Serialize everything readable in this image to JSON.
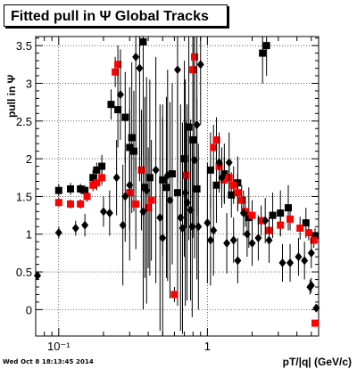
{
  "title": "Fitted pull in Ψ   Global Tracks",
  "footer": "Wed Oct  8 18:13:45 2014",
  "chart_data": {
    "type": "scatter",
    "title": "Fitted pull in Ψ   Global Tracks",
    "xlabel": "pT/|q| (GeV/c)",
    "ylabel": "pull in Ψ",
    "x_scale": "log",
    "xlim": [
      0.07,
      5.6
    ],
    "ylim": [
      -0.35,
      3.62
    ],
    "grid": true,
    "x_ticks": [
      {
        "value": 0.1,
        "label": "10⁻¹"
      },
      {
        "value": 1,
        "label": "1"
      }
    ],
    "y_ticks": [
      0,
      0.5,
      1,
      1.5,
      2,
      2.5,
      3,
      3.5
    ],
    "series": [
      {
        "marker": "square",
        "color": "#000000",
        "points": [
          {
            "x": 0.1,
            "y": 1.58,
            "err": 0.08
          },
          {
            "x": 0.12,
            "y": 1.6,
            "err": 0.08
          },
          {
            "x": 0.14,
            "y": 1.6,
            "err": 0.07
          },
          {
            "x": 0.15,
            "y": 1.58,
            "err": 0.07
          },
          {
            "x": 0.17,
            "y": 1.75,
            "err": 0.1
          },
          {
            "x": 0.18,
            "y": 1.85,
            "err": 0.1
          },
          {
            "x": 0.195,
            "y": 1.9,
            "err": 0.15
          },
          {
            "x": 0.225,
            "y": 2.72,
            "err": 0.2
          },
          {
            "x": 0.25,
            "y": 2.65,
            "err": 0.5
          },
          {
            "x": 0.28,
            "y": 2.55,
            "err": 0.6
          },
          {
            "x": 0.3,
            "y": 2.15,
            "err": 0.8
          },
          {
            "x": 0.31,
            "y": 2.28,
            "err": 1.0
          },
          {
            "x": 0.32,
            "y": 2.1,
            "err": 0.8
          },
          {
            "x": 0.37,
            "y": 3.55,
            "err": 1.5
          },
          {
            "x": 0.38,
            "y": 1.62,
            "err": 1.2
          },
          {
            "x": 0.41,
            "y": 1.75,
            "err": 1.3
          },
          {
            "x": 0.5,
            "y": 1.72,
            "err": 1.0
          },
          {
            "x": 0.53,
            "y": 1.62,
            "err": 1.2
          },
          {
            "x": 0.58,
            "y": 1.8,
            "err": 1.2
          },
          {
            "x": 0.63,
            "y": 1.55,
            "err": 1.5
          },
          {
            "x": 0.7,
            "y": 2.0,
            "err": 1.3
          },
          {
            "x": 0.75,
            "y": 2.42,
            "err": 1.5
          },
          {
            "x": 0.8,
            "y": 2.25,
            "err": 1.3
          },
          {
            "x": 0.85,
            "y": 1.6,
            "err": 1.2
          },
          {
            "x": 1.05,
            "y": 1.85,
            "err": 0.5
          },
          {
            "x": 1.15,
            "y": 1.65,
            "err": 0.5
          },
          {
            "x": 1.3,
            "y": 1.8,
            "err": 0.4
          },
          {
            "x": 1.45,
            "y": 1.52,
            "err": 0.3
          },
          {
            "x": 1.6,
            "y": 1.68,
            "err": 0.35
          },
          {
            "x": 1.9,
            "y": 1.22,
            "err": 0.4
          },
          {
            "x": 2.35,
            "y": 3.4,
            "err": 0.4
          },
          {
            "x": 2.5,
            "y": 3.5,
            "err": 0.4
          },
          {
            "x": 2.75,
            "y": 1.25,
            "err": 0.3
          },
          {
            "x": 3.1,
            "y": 1.28,
            "err": 0.3
          },
          {
            "x": 3.5,
            "y": 1.35,
            "err": 0.3
          },
          {
            "x": 4.6,
            "y": 1.15,
            "err": 0.2
          },
          {
            "x": 5.3,
            "y": 0.98,
            "err": 0.1
          }
        ]
      },
      {
        "marker": "square",
        "color": "#ff0000",
        "points": [
          {
            "x": 0.1,
            "y": 1.42,
            "err": 0.06
          },
          {
            "x": 0.12,
            "y": 1.4,
            "err": 0.06
          },
          {
            "x": 0.14,
            "y": 1.4,
            "err": 0.06
          },
          {
            "x": 0.155,
            "y": 1.5,
            "err": 0.07
          },
          {
            "x": 0.17,
            "y": 1.65,
            "err": 0.08
          },
          {
            "x": 0.18,
            "y": 1.68,
            "err": 0.1
          },
          {
            "x": 0.195,
            "y": 1.75,
            "err": 0.1
          },
          {
            "x": 0.24,
            "y": 3.15,
            "err": 0.2
          },
          {
            "x": 0.25,
            "y": 3.25,
            "err": 0.25
          },
          {
            "x": 0.3,
            "y": 1.55,
            "err": 0.5
          },
          {
            "x": 0.33,
            "y": 1.4,
            "err": 0.6
          },
          {
            "x": 0.36,
            "y": 1.85,
            "err": 0.8
          },
          {
            "x": 0.4,
            "y": 1.35,
            "err": 0.8
          },
          {
            "x": 0.42,
            "y": 1.45,
            "err": 0.8
          },
          {
            "x": 0.6,
            "y": 0.2,
            "err": 0.1
          },
          {
            "x": 0.72,
            "y": 1.78,
            "err": 0.7
          },
          {
            "x": 0.8,
            "y": 3.18,
            "err": 0.7
          },
          {
            "x": 0.82,
            "y": 3.35,
            "err": 0.6
          },
          {
            "x": 1.1,
            "y": 2.15,
            "err": 0.3
          },
          {
            "x": 1.15,
            "y": 2.25,
            "err": 0.3
          },
          {
            "x": 1.2,
            "y": 1.9,
            "err": 0.3
          },
          {
            "x": 1.3,
            "y": 1.72,
            "err": 0.3
          },
          {
            "x": 1.4,
            "y": 1.75,
            "err": 0.25
          },
          {
            "x": 1.5,
            "y": 1.65,
            "err": 0.25
          },
          {
            "x": 1.6,
            "y": 1.55,
            "err": 0.25
          },
          {
            "x": 1.7,
            "y": 1.45,
            "err": 0.2
          },
          {
            "x": 1.8,
            "y": 1.3,
            "err": 0.2
          },
          {
            "x": 2.0,
            "y": 1.25,
            "err": 0.2
          },
          {
            "x": 2.3,
            "y": 1.18,
            "err": 0.2
          },
          {
            "x": 2.6,
            "y": 1.05,
            "err": 0.15
          },
          {
            "x": 3.1,
            "y": 1.12,
            "err": 0.15
          },
          {
            "x": 3.6,
            "y": 1.2,
            "err": 0.15
          },
          {
            "x": 4.2,
            "y": 1.08,
            "err": 0.15
          },
          {
            "x": 4.8,
            "y": 1.02,
            "err": 0.1
          },
          {
            "x": 5.2,
            "y": 0.92,
            "err": 0.1
          },
          {
            "x": 5.3,
            "y": -0.18,
            "err": 0.03
          }
        ]
      },
      {
        "marker": "diamond",
        "color": "#000000",
        "points": [
          {
            "x": 0.072,
            "y": 0.45,
            "err": 0.03
          },
          {
            "x": 0.1,
            "y": 1.02,
            "err": 0.08
          },
          {
            "x": 0.13,
            "y": 1.08,
            "err": 0.1
          },
          {
            "x": 0.15,
            "y": 1.12,
            "err": 0.15
          },
          {
            "x": 0.2,
            "y": 1.3,
            "err": 0.2
          },
          {
            "x": 0.22,
            "y": 1.28,
            "err": 0.3
          },
          {
            "x": 0.245,
            "y": 1.75,
            "err": 0.5
          },
          {
            "x": 0.26,
            "y": 2.85,
            "err": 0.6
          },
          {
            "x": 0.27,
            "y": 1.12,
            "err": 0.8
          },
          {
            "x": 0.28,
            "y": 1.5,
            "err": 0.6
          },
          {
            "x": 0.3,
            "y": 1.65,
            "err": 1.0
          },
          {
            "x": 0.33,
            "y": 3.35,
            "err": 1.5
          },
          {
            "x": 0.35,
            "y": 3.2,
            "err": 1.5
          },
          {
            "x": 0.37,
            "y": 1.3,
            "err": 1.3
          },
          {
            "x": 0.39,
            "y": 1.58,
            "err": 1.5
          },
          {
            "x": 0.45,
            "y": 1.85,
            "err": 1.5
          },
          {
            "x": 0.48,
            "y": 1.22,
            "err": 1.5
          },
          {
            "x": 0.5,
            "y": 0.95,
            "err": 1.6
          },
          {
            "x": 0.54,
            "y": 1.78,
            "err": 1.4
          },
          {
            "x": 0.56,
            "y": 1.45,
            "err": 1.3
          },
          {
            "x": 0.63,
            "y": 3.18,
            "err": 1.5
          },
          {
            "x": 0.66,
            "y": 1.22,
            "err": 1.5
          },
          {
            "x": 0.68,
            "y": 1.08,
            "err": 1.4
          },
          {
            "x": 0.71,
            "y": 1.55,
            "err": 1.5
          },
          {
            "x": 0.73,
            "y": 1.42,
            "err": 1.3
          },
          {
            "x": 0.77,
            "y": 1.32,
            "err": 1.2
          },
          {
            "x": 0.79,
            "y": 1.1,
            "err": 1.2
          },
          {
            "x": 0.82,
            "y": 1.98,
            "err": 1.3
          },
          {
            "x": 0.85,
            "y": 2.45,
            "err": 1.2
          },
          {
            "x": 0.87,
            "y": 1.1,
            "err": 1.1
          },
          {
            "x": 0.9,
            "y": 3.25,
            "err": 0.8
          },
          {
            "x": 1.0,
            "y": 1.15,
            "err": 0.8
          },
          {
            "x": 1.05,
            "y": 0.92,
            "err": 0.6
          },
          {
            "x": 1.1,
            "y": 1.05,
            "err": 0.6
          },
          {
            "x": 1.2,
            "y": 1.95,
            "err": 0.4
          },
          {
            "x": 1.25,
            "y": 1.75,
            "err": 0.4
          },
          {
            "x": 1.35,
            "y": 0.88,
            "err": 0.4
          },
          {
            "x": 1.4,
            "y": 1.95,
            "err": 0.4
          },
          {
            "x": 1.5,
            "y": 0.92,
            "err": 0.3
          },
          {
            "x": 1.6,
            "y": 0.65,
            "err": 0.3
          },
          {
            "x": 1.75,
            "y": 1.28,
            "err": 0.3
          },
          {
            "x": 1.85,
            "y": 1.0,
            "err": 0.3
          },
          {
            "x": 2.0,
            "y": 0.88,
            "err": 0.3
          },
          {
            "x": 2.2,
            "y": 0.95,
            "err": 0.3
          },
          {
            "x": 2.45,
            "y": 1.18,
            "err": 0.3
          },
          {
            "x": 2.6,
            "y": 0.92,
            "err": 0.3
          },
          {
            "x": 3.2,
            "y": 0.62,
            "err": 0.25
          },
          {
            "x": 3.6,
            "y": 0.62,
            "err": 0.25
          },
          {
            "x": 4.1,
            "y": 0.7,
            "err": 0.25
          },
          {
            "x": 4.5,
            "y": 0.65,
            "err": 0.25
          },
          {
            "x": 4.9,
            "y": 0.3,
            "err": 0.1
          },
          {
            "x": 5.0,
            "y": 0.32,
            "err": 0.1
          },
          {
            "x": 5.4,
            "y": 0.02,
            "err": 0.05
          },
          {
            "x": 5.0,
            "y": 0.75,
            "err": 0.2
          }
        ]
      }
    ]
  }
}
